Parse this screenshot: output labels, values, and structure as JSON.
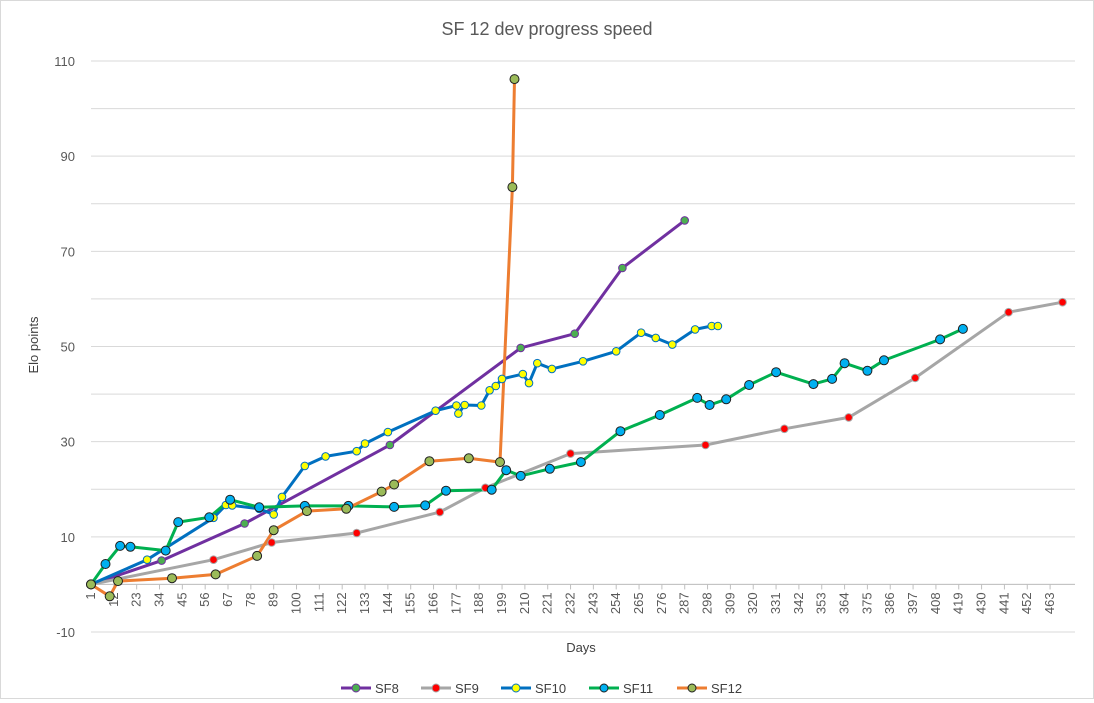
{
  "chart_data": {
    "type": "line",
    "title": "SF 12 dev progress speed",
    "xlabel": "Days",
    "ylabel": "Elo points",
    "xlim": [
      1,
      475
    ],
    "ylim": [
      -10,
      110
    ],
    "y_ticks": [
      -10,
      10,
      30,
      50,
      70,
      90,
      110
    ],
    "x_ticks": [
      1,
      12,
      23,
      34,
      45,
      56,
      67,
      78,
      89,
      100,
      111,
      122,
      133,
      144,
      155,
      166,
      177,
      188,
      199,
      210,
      221,
      232,
      243,
      254,
      265,
      276,
      287,
      298,
      309,
      320,
      331,
      342,
      353,
      364,
      375,
      386,
      397,
      408,
      419,
      430,
      441,
      452,
      463
    ],
    "grid": true,
    "legend_position": "bottom",
    "series": [
      {
        "name": "SF8",
        "line_color": "#7030a0",
        "marker_color": "#4caf50",
        "points": [
          [
            1,
            0
          ],
          [
            35,
            5
          ],
          [
            75,
            12.8
          ],
          [
            145,
            29.3
          ],
          [
            208,
            49.7
          ],
          [
            234,
            52.7
          ],
          [
            257,
            66.5
          ],
          [
            287,
            76.5
          ]
        ]
      },
      {
        "name": "SF9",
        "line_color": "#a6a6a6",
        "marker_color": "#ff0000",
        "points": [
          [
            1,
            0
          ],
          [
            60,
            5.2
          ],
          [
            88,
            8.8
          ],
          [
            129,
            10.8
          ],
          [
            169,
            15.2
          ],
          [
            191,
            20.3
          ],
          [
            232,
            27.5
          ],
          [
            297,
            29.3
          ],
          [
            335,
            32.7
          ],
          [
            366,
            35.1
          ],
          [
            398,
            43.4
          ],
          [
            443,
            57.2
          ],
          [
            469,
            59.3
          ]
        ]
      },
      {
        "name": "SF10",
        "line_color": "#0070c0",
        "marker_color": "#ffff00",
        "points": [
          [
            1,
            0
          ],
          [
            28,
            5.2
          ],
          [
            60,
            14
          ],
          [
            66,
            16.7
          ],
          [
            69,
            16.6
          ],
          [
            82,
            15.9
          ],
          [
            89,
            14.7
          ],
          [
            93,
            18.4
          ],
          [
            104,
            24.9
          ],
          [
            114,
            26.9
          ],
          [
            129,
            28
          ],
          [
            133,
            29.6
          ],
          [
            144,
            32
          ],
          [
            167,
            36.5
          ],
          [
            177,
            37.6
          ],
          [
            178,
            35.9
          ],
          [
            181,
            37.7
          ],
          [
            189,
            37.6
          ],
          [
            193,
            40.8
          ],
          [
            196,
            41.7
          ],
          [
            199,
            43.2
          ],
          [
            209,
            44.2
          ],
          [
            212,
            42.3
          ],
          [
            216,
            46.5
          ],
          [
            223,
            45.3
          ],
          [
            238,
            46.9
          ],
          [
            254,
            49
          ],
          [
            266,
            52.9
          ],
          [
            273,
            51.8
          ],
          [
            281,
            50.4
          ],
          [
            292,
            53.6
          ],
          [
            300,
            54.3
          ],
          [
            303,
            54.3
          ]
        ]
      },
      {
        "name": "SF11",
        "line_color": "#00b050",
        "marker_color": "#00b0f0",
        "points": [
          [
            1,
            0
          ],
          [
            8,
            4.3
          ],
          [
            15,
            8.1
          ],
          [
            20,
            7.9
          ],
          [
            37,
            7.1
          ],
          [
            43,
            13.1
          ],
          [
            58,
            14.1
          ],
          [
            68,
            17.8
          ],
          [
            82,
            16.2
          ],
          [
            104,
            16.5
          ],
          [
            125,
            16.5
          ],
          [
            147,
            16.3
          ],
          [
            162,
            16.6
          ],
          [
            172,
            19.7
          ],
          [
            194,
            19.9
          ],
          [
            201,
            24
          ],
          [
            208,
            22.8
          ],
          [
            222,
            24.3
          ],
          [
            237,
            25.7
          ],
          [
            256,
            32.2
          ],
          [
            275,
            35.6
          ],
          [
            293,
            39.2
          ],
          [
            299,
            37.7
          ],
          [
            307,
            38.9
          ],
          [
            318,
            41.9
          ],
          [
            331,
            44.6
          ],
          [
            349,
            42.1
          ],
          [
            358,
            43.2
          ],
          [
            364,
            46.5
          ],
          [
            375,
            44.9
          ],
          [
            383,
            47.1
          ],
          [
            410,
            51.5
          ],
          [
            421,
            53.7
          ]
        ]
      },
      {
        "name": "SF12",
        "line_color": "#ed7d31",
        "marker_color": "#9bbb59",
        "points": [
          [
            1,
            0
          ],
          [
            10,
            -2.5
          ],
          [
            14,
            0.7
          ],
          [
            40,
            1.3
          ],
          [
            61,
            2.1
          ],
          [
            81,
            6
          ],
          [
            89,
            11.4
          ],
          [
            105,
            15.4
          ],
          [
            124,
            15.9
          ],
          [
            141,
            19.5
          ],
          [
            147,
            21
          ],
          [
            164,
            25.9
          ],
          [
            183,
            26.5
          ],
          [
            198,
            25.7
          ],
          [
            204,
            83.5
          ],
          [
            205,
            106.2
          ]
        ]
      }
    ]
  }
}
